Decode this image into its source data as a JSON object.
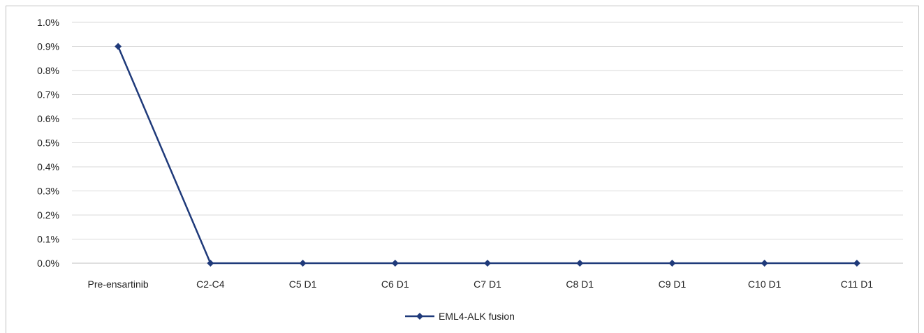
{
  "chart_data": {
    "type": "line",
    "categories": [
      "Pre-ensartinib",
      "C2-C4",
      "C5 D1",
      "C6 D1",
      "C7 D1",
      "C8 D1",
      "C9 D1",
      "C10 D1",
      "C11 D1"
    ],
    "series": [
      {
        "name": "EML4-ALK fusion",
        "values": [
          0.009,
          0.0,
          0.0,
          0.0,
          0.0,
          0.0,
          0.0,
          0.0,
          0.0
        ],
        "color": "#1f3a7a"
      }
    ],
    "y_ticks": [
      "0.0%",
      "0.1%",
      "0.2%",
      "0.3%",
      "0.4%",
      "0.5%",
      "0.6%",
      "0.7%",
      "0.8%",
      "0.9%",
      "1.0%"
    ],
    "ylim": [
      0,
      0.01
    ],
    "grid": true,
    "legend_position": "bottom",
    "gridline_color": "#d9d9d9",
    "axis_color": "#bfbfbf"
  }
}
